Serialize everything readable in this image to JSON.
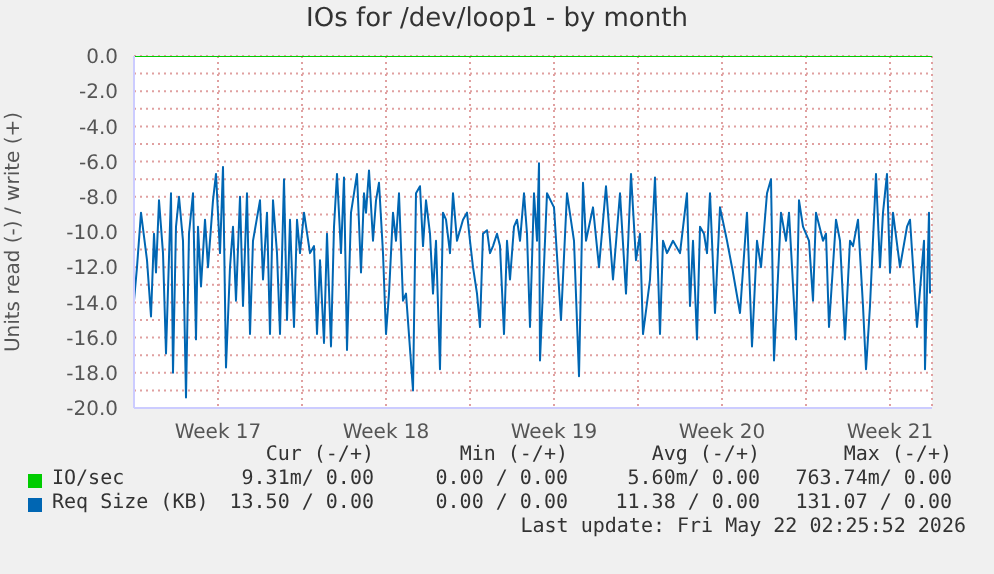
{
  "chart_data": {
    "type": "line",
    "title": "IOs for /dev/loop1 - by month",
    "ylabel": "Units read (-) / write (+)",
    "xlim": [
      "2026-04-19T00:00",
      "2026-05-22T06:00"
    ],
    "ylim": [
      -20,
      0
    ],
    "xticks": [
      {
        "value": "2026-04-22T12:00",
        "label": "Week 17"
      },
      {
        "value": "2026-04-26",
        "label": null
      },
      {
        "value": "2026-04-29T12:00",
        "label": "Week 18"
      },
      {
        "value": "2026-05-03",
        "label": null
      },
      {
        "value": "2026-05-06T12:00",
        "label": "Week 19"
      },
      {
        "value": "2026-05-10",
        "label": null
      },
      {
        "value": "2026-05-13T12:00",
        "label": "Week 20"
      },
      {
        "value": "2026-05-17",
        "label": null
      },
      {
        "value": "2026-05-20T12:00",
        "label": "Week 21"
      }
    ],
    "yticks": [
      {
        "value": 0,
        "label": "0.0"
      },
      {
        "value": -1,
        "label": null
      },
      {
        "value": -2,
        "label": "-2.0"
      },
      {
        "value": -3,
        "label": null
      },
      {
        "value": -4,
        "label": "-4.0"
      },
      {
        "value": -5,
        "label": null
      },
      {
        "value": -6,
        "label": "-6.0"
      },
      {
        "value": -7,
        "label": null
      },
      {
        "value": -8,
        "label": "-8.0"
      },
      {
        "value": -9,
        "label": null
      },
      {
        "value": -10,
        "label": "-10.0"
      },
      {
        "value": -11,
        "label": null
      },
      {
        "value": -12,
        "label": "-12.0"
      },
      {
        "value": -13,
        "label": null
      },
      {
        "value": -14,
        "label": "-14.0"
      },
      {
        "value": -15,
        "label": null
      },
      {
        "value": -16,
        "label": "-16.0"
      },
      {
        "value": -17,
        "label": null
      },
      {
        "value": -18,
        "label": "-18.0"
      },
      {
        "value": -19,
        "label": null
      },
      {
        "value": -20,
        "label": "-20.0"
      }
    ],
    "grid": true,
    "legend": "bottom",
    "marker": "none",
    "line_style": "solid",
    "series": [
      {
        "name": "IO/sec",
        "color": "#00cc00",
        "x": [
          "2026-04-19T00:00",
          "2026-05-22T06:00"
        ],
        "values": [
          0,
          0
        ]
      },
      {
        "name": "Req Size (KB)",
        "color": "#0066b3",
        "x": [
          "2026-04-19T00:00",
          "2026-04-19T03:00",
          "2026-04-19T07:00",
          "2026-04-19T13:00",
          "2026-04-19T17:00",
          "2026-04-19T20:00",
          "2026-04-19T22:00",
          "2026-04-20T01:00",
          "2026-04-20T05:00",
          "2026-04-20T08:00",
          "2026-04-20T13:00",
          "2026-04-20T15:00",
          "2026-04-20T18:00",
          "2026-04-20T21:00",
          "2026-04-21T01:00",
          "2026-04-21T04:00",
          "2026-04-21T07:00",
          "2026-04-21T11:00",
          "2026-04-21T14:00",
          "2026-04-21T16:00",
          "2026-04-21T19:00",
          "2026-04-21T23:00",
          "2026-04-22T02:00",
          "2026-04-22T07:00",
          "2026-04-22T10:00",
          "2026-04-22T14:00",
          "2026-04-22T17:00",
          "2026-04-22T20:00",
          "2026-04-23T00:00",
          "2026-04-23T03:00",
          "2026-04-23T06:00",
          "2026-04-23T10:00",
          "2026-04-23T13:00",
          "2026-04-23T17:00",
          "2026-04-23T20:00",
          "2026-04-23T23:00",
          "2026-04-24T06:00",
          "2026-04-24T09:00",
          "2026-04-24T13:00",
          "2026-04-24T16:00",
          "2026-04-24T19:00",
          "2026-04-24T23:00",
          "2026-04-25T02:00",
          "2026-04-25T06:00",
          "2026-04-25T09:00",
          "2026-04-25T12:00",
          "2026-04-25T16:00",
          "2026-04-25T19:00",
          "2026-04-25T22:00",
          "2026-04-26T02:00",
          "2026-04-26T08:00",
          "2026-04-26T12:00",
          "2026-04-26T15:00",
          "2026-04-26T18:00",
          "2026-04-26T22:00",
          "2026-04-27T01:00",
          "2026-04-27T05:00",
          "2026-04-27T08:00",
          "2026-04-27T11:00",
          "2026-04-27T15:00",
          "2026-04-27T18:00",
          "2026-04-27T21:00",
          "2026-04-28T01:00",
          "2026-04-28T04:00",
          "2026-04-28T07:00",
          "2026-04-28T11:00",
          "2026-04-28T14:00",
          "2026-04-28T16:00",
          "2026-04-28T19:00",
          "2026-04-28T23:00",
          "2026-04-29T02:00",
          "2026-04-29T05:00",
          "2026-04-29T09:00",
          "2026-04-29T12:00",
          "2026-04-29T15:00",
          "2026-04-29T19:00",
          "2026-04-29T22:00",
          "2026-04-30T01:00",
          "2026-04-30T05:00",
          "2026-04-30T08:00",
          "2026-04-30T15:00",
          "2026-04-30T18:00",
          "2026-04-30T22:00",
          "2026-05-01T01:00",
          "2026-05-01T04:00",
          "2026-05-01T08:00",
          "2026-05-01T11:00",
          "2026-05-01T14:00",
          "2026-05-01T18:00",
          "2026-05-01T21:00",
          "2026-05-02T00:00",
          "2026-05-02T04:00",
          "2026-05-02T07:00",
          "2026-05-02T11:00",
          "2026-05-02T17:00",
          "2026-05-02T21:00",
          "2026-05-03T00:00",
          "2026-05-03T03:00",
          "2026-05-03T07:00",
          "2026-05-03T10:00",
          "2026-05-03T13:00",
          "2026-05-03T17:00",
          "2026-05-03T20:00",
          "2026-05-03T23:00",
          "2026-05-04T03:00",
          "2026-05-04T06:00",
          "2026-05-04T10:00",
          "2026-05-04T13:00",
          "2026-05-04T16:00",
          "2026-05-04T20:00",
          "2026-05-04T23:00",
          "2026-05-05T02:00",
          "2026-05-05T06:00",
          "2026-05-05T09:00",
          "2026-05-05T12:00",
          "2026-05-05T16:00",
          "2026-05-05T19:00",
          "2026-05-05T21:00",
          "2026-05-05T22:00",
          "2026-05-06T05:00",
          "2026-05-06T12:00",
          "2026-05-06T19:00",
          "2026-05-07T01:00",
          "2026-05-07T08:00",
          "2026-05-07T13:00",
          "2026-05-07T17:00",
          "2026-05-07T20:00",
          "2026-05-08T03:00",
          "2026-05-08T09:00",
          "2026-05-08T16:00",
          "2026-05-08T23:00",
          "2026-05-09T06:00",
          "2026-05-09T12:00",
          "2026-05-09T17:00",
          "2026-05-09T22:00",
          "2026-05-10T02:00",
          "2026-05-10T05:00",
          "2026-05-10T12:00",
          "2026-05-10T17:00",
          "2026-05-10T22:00",
          "2026-05-11T01:00",
          "2026-05-11T05:00",
          "2026-05-11T11:00",
          "2026-05-11T18:00",
          "2026-05-12T01:00",
          "2026-05-12T04:00",
          "2026-05-12T07:00",
          "2026-05-12T11:00",
          "2026-05-12T14:00",
          "2026-05-12T18:00",
          "2026-05-12T21:00",
          "2026-05-13T00:00",
          "2026-05-13T05:00",
          "2026-05-13T10:00",
          "2026-05-13T17:00",
          "2026-05-13T23:00",
          "2026-05-14T06:00",
          "2026-05-14T13:00",
          "2026-05-14T18:00",
          "2026-05-14T23:00",
          "2026-05-15T03:00",
          "2026-05-15T09:00",
          "2026-05-15T13:00",
          "2026-05-15T16:00",
          "2026-05-15T23:00",
          "2026-05-16T04:00",
          "2026-05-16T07:00",
          "2026-05-16T14:00",
          "2026-05-16T17:00",
          "2026-05-16T21:00",
          "2026-05-17T03:00",
          "2026-05-17T07:00",
          "2026-05-17T10:00",
          "2026-05-17T17:00",
          "2026-05-17T20:00",
          "2026-05-17T23:00",
          "2026-05-18T06:00",
          "2026-05-18T10:00",
          "2026-05-18T15:00",
          "2026-05-18T20:00",
          "2026-05-18T23:00",
          "2026-05-19T04:00",
          "2026-05-19T09:00",
          "2026-05-19T12:00",
          "2026-05-19T16:00",
          "2026-05-19T22:00",
          "2026-05-20T02:00",
          "2026-05-20T05:00",
          "2026-05-20T09:00",
          "2026-05-20T12:00",
          "2026-05-20T15:00",
          "2026-05-20T22:00",
          "2026-05-21T05:00",
          "2026-05-21T08:00",
          "2026-05-21T15:00",
          "2026-05-21T22:00",
          "2026-05-21T23:00",
          "2026-05-22T03:00",
          "2026-05-22T04:00"
        ],
        "values": [
          -13.9,
          -12.0,
          -8.9,
          -11.6,
          -14.8,
          -10.1,
          -12.3,
          -8.2,
          -11.2,
          -16.9,
          -7.8,
          -18.0,
          -9.7,
          -8.0,
          -10.5,
          -19.4,
          -10.1,
          -7.8,
          -16.1,
          -9.7,
          -13.1,
          -9.3,
          -12.0,
          -8.2,
          -6.7,
          -11.2,
          -6.3,
          -17.7,
          -12.0,
          -9.7,
          -13.9,
          -8.0,
          -14.2,
          -7.8,
          -15.8,
          -10.5,
          -8.2,
          -12.7,
          -8.9,
          -15.8,
          -8.2,
          -11.2,
          -15.8,
          -7.0,
          -15.0,
          -9.3,
          -15.4,
          -9.3,
          -11.2,
          -8.9,
          -11.2,
          -10.8,
          -15.8,
          -11.6,
          -16.3,
          -10.1,
          -16.5,
          -9.7,
          -6.7,
          -11.2,
          -6.9,
          -16.7,
          -8.9,
          -7.8,
          -6.7,
          -12.3,
          -7.8,
          -8.9,
          -6.5,
          -10.5,
          -8.2,
          -7.2,
          -11.2,
          -15.8,
          -13.5,
          -8.9,
          -10.5,
          -7.8,
          -13.9,
          -13.5,
          -19.0,
          -7.8,
          -7.4,
          -10.8,
          -8.2,
          -10.1,
          -13.5,
          -10.5,
          -17.8,
          -8.9,
          -9.3,
          -11.2,
          -7.8,
          -10.5,
          -9.3,
          -8.9,
          -10.5,
          -12.0,
          -13.5,
          -15.4,
          -10.1,
          -9.9,
          -11.2,
          -10.8,
          -10.1,
          -10.8,
          -15.8,
          -10.5,
          -12.7,
          -9.7,
          -9.3,
          -10.5,
          -7.8,
          -10.1,
          -15.4,
          -7.8,
          -10.5,
          -6.1,
          -17.3,
          -7.8,
          -8.6,
          -15.0,
          -7.8,
          -10.5,
          -18.2,
          -7.2,
          -10.5,
          -8.6,
          -12.0,
          -7.4,
          -12.7,
          -7.8,
          -13.5,
          -6.7,
          -11.6,
          -10.1,
          -15.8,
          -12.7,
          -6.9,
          -15.8,
          -10.5,
          -11.2,
          -10.5,
          -11.2,
          -7.8,
          -14.2,
          -10.5,
          -16.1,
          -9.7,
          -10.1,
          -11.2,
          -7.8,
          -14.6,
          -8.6,
          -10.5,
          -12.3,
          -14.6,
          -8.9,
          -16.5,
          -10.5,
          -12.0,
          -7.8,
          -7.0,
          -17.3,
          -8.9,
          -10.5,
          -8.9,
          -16.1,
          -8.2,
          -9.7,
          -10.5,
          -13.9,
          -8.9,
          -10.5,
          -10.1,
          -15.4,
          -9.3,
          -10.5,
          -16.1,
          -10.5,
          -10.8,
          -9.3,
          -14.2,
          -17.8,
          -14.2,
          -6.7,
          -12.0,
          -8.9,
          -6.7,
          -12.3,
          -8.9,
          -12.0,
          -9.7,
          -9.3,
          -15.4,
          -10.5,
          -17.8,
          -8.9,
          -13.5
        ]
      }
    ],
    "annotations": [
      "Cur (-/+)",
      "Min (-/+)",
      "Avg (-/+)",
      "Max (-/+)",
      "9.31m/ 0.00",
      "0.00 / 0.00",
      "5.60m/ 0.00",
      "763.74m/ 0.00",
      "13.50 / 0.00",
      "0.00 / 0.00",
      "11.38 / 0.00",
      "131.07 / 0.00",
      "Last update: Fri May 22 02:25:52 2026"
    ]
  }
}
